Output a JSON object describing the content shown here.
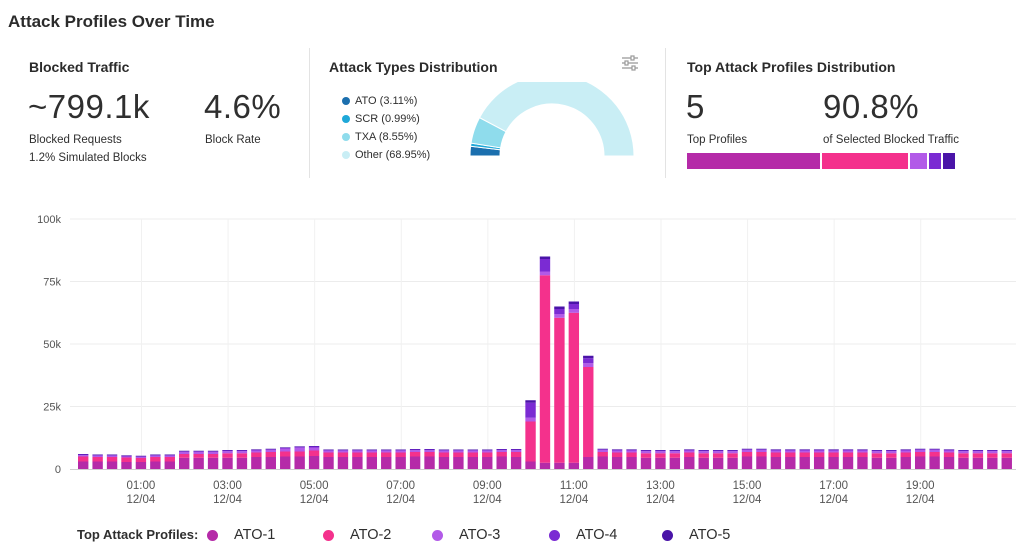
{
  "header": {
    "title": "Attack Profiles Over Time"
  },
  "blocked_traffic": {
    "title": "Blocked Traffic",
    "requests_value": "~799.1k",
    "requests_label": "Blocked Requests",
    "simulated_label": "1.2% Simulated Blocks",
    "rate_value": "4.6%",
    "rate_label": "Block Rate"
  },
  "attack_types": {
    "title": "Attack Types Distribution",
    "legend": [
      {
        "label": "ATO (3.11%)",
        "value": 3.11,
        "color": "#1b6fae"
      },
      {
        "label": "SCR (0.99%)",
        "value": 0.99,
        "color": "#1fa8d8"
      },
      {
        "label": "TXA (8.55%)",
        "value": 8.55,
        "color": "#8fdcec"
      },
      {
        "label": "Other (68.95%)",
        "value": 68.95,
        "color": "#c9eef5"
      }
    ],
    "settings_icon": "sliders-icon"
  },
  "top_profiles": {
    "title": "Top Attack Profiles Distribution",
    "count_value": "5",
    "count_label": "Top Profiles",
    "share_value": "90.8%",
    "share_label": "of Selected Blocked Traffic",
    "segments": [
      {
        "name": "ATO-1",
        "share": 0.49,
        "color": "#b52aa8"
      },
      {
        "name": "ATO-2",
        "share": 0.32,
        "color": "#f4318c"
      },
      {
        "name": "ATO-3",
        "share": 0.07,
        "color": "#b25ae8"
      },
      {
        "name": "ATO-4",
        "share": 0.05,
        "color": "#7b2bd3"
      },
      {
        "name": "ATO-5",
        "share": 0.05,
        "color": "#4a14a8"
      }
    ]
  },
  "chart_data": {
    "type": "bar",
    "stacked": true,
    "ylim": [
      0,
      100000
    ],
    "yticks": [
      {
        "value": 0,
        "label": "0"
      },
      {
        "value": 25000,
        "label": "25k"
      },
      {
        "value": 50000,
        "label": "50k"
      },
      {
        "value": 75000,
        "label": "75k"
      },
      {
        "value": 100000,
        "label": "100k"
      }
    ],
    "xticks": [
      {
        "time": "01:00",
        "date": "12/04",
        "index": 4
      },
      {
        "time": "03:00",
        "date": "12/04",
        "index": 10
      },
      {
        "time": "05:00",
        "date": "12/04",
        "index": 16
      },
      {
        "time": "07:00",
        "date": "12/04",
        "index": 22
      },
      {
        "time": "09:00",
        "date": "12/04",
        "index": 28
      },
      {
        "time": "11:00",
        "date": "12/04",
        "index": 34
      },
      {
        "time": "13:00",
        "date": "12/04",
        "index": 40
      },
      {
        "time": "15:00",
        "date": "12/04",
        "index": 46
      },
      {
        "time": "17:00",
        "date": "12/04",
        "index": 52
      },
      {
        "time": "19:00",
        "date": "12/04",
        "index": 58
      }
    ],
    "grid": true,
    "legend_title": "Top Attack Profiles:",
    "series": [
      {
        "name": "ATO-1",
        "color": "#b52aa8",
        "values": [
          3000,
          3000,
          3000,
          2800,
          2800,
          3000,
          3000,
          4500,
          4500,
          4500,
          4500,
          4500,
          4800,
          4800,
          5000,
          5000,
          5200,
          4800,
          4800,
          4800,
          4800,
          4800,
          4800,
          5000,
          5000,
          4800,
          4800,
          4800,
          4800,
          5000,
          4800,
          3000,
          2500,
          2500,
          2500,
          4800,
          5000,
          4800,
          4800,
          4500,
          4500,
          4500,
          4800,
          4500,
          4500,
          4500,
          5000,
          5000,
          4800,
          4800,
          4800,
          4800,
          4800,
          4800,
          4800,
          4500,
          4500,
          4800,
          5000,
          5000,
          4800,
          4500,
          4500,
          4500,
          4500
        ]
      },
      {
        "name": "ATO-2",
        "color": "#f4318c",
        "values": [
          2000,
          1800,
          1800,
          1800,
          1600,
          1800,
          1800,
          1500,
          1500,
          1500,
          1800,
          1800,
          1800,
          2000,
          2000,
          2000,
          2200,
          1800,
          1800,
          1800,
          1800,
          1800,
          1800,
          1800,
          1800,
          1800,
          1800,
          1800,
          1800,
          1800,
          2000,
          16000,
          75000,
          58000,
          60000,
          36000,
          1800,
          1800,
          1800,
          1800,
          1800,
          1800,
          1800,
          1800,
          1800,
          1800,
          1800,
          1800,
          1800,
          1800,
          1800,
          1800,
          1800,
          1800,
          1800,
          1800,
          1800,
          1800,
          1800,
          1800,
          1800,
          1800,
          1800,
          1800,
          1800
        ]
      },
      {
        "name": "ATO-3",
        "color": "#b25ae8",
        "values": [
          500,
          500,
          500,
          400,
          400,
          500,
          500,
          800,
          800,
          800,
          800,
          800,
          800,
          800,
          1200,
          1500,
          1200,
          700,
          700,
          700,
          700,
          700,
          700,
          700,
          700,
          700,
          700,
          700,
          700,
          700,
          700,
          1500,
          1500,
          1500,
          1500,
          1500,
          800,
          800,
          800,
          800,
          800,
          800,
          800,
          800,
          800,
          800,
          800,
          800,
          800,
          800,
          800,
          800,
          800,
          800,
          800,
          800,
          800,
          800,
          800,
          800,
          800,
          800,
          800,
          800,
          800
        ]
      },
      {
        "name": "ATO-4",
        "color": "#7b2bd3",
        "values": [
          300,
          300,
          300,
          300,
          300,
          300,
          300,
          300,
          300,
          300,
          300,
          300,
          300,
          300,
          300,
          400,
          400,
          300,
          300,
          300,
          300,
          300,
          300,
          300,
          300,
          300,
          300,
          300,
          300,
          300,
          300,
          6000,
          5000,
          2000,
          2000,
          2000,
          300,
          300,
          300,
          300,
          300,
          300,
          300,
          300,
          300,
          300,
          300,
          300,
          300,
          300,
          300,
          300,
          300,
          300,
          300,
          300,
          300,
          300,
          300,
          300,
          300,
          300,
          300,
          300,
          300
        ]
      },
      {
        "name": "ATO-5",
        "color": "#4a14a8",
        "values": [
          200,
          200,
          200,
          200,
          200,
          200,
          200,
          200,
          200,
          200,
          200,
          200,
          200,
          200,
          200,
          200,
          200,
          200,
          200,
          200,
          200,
          200,
          200,
          200,
          200,
          200,
          200,
          200,
          200,
          200,
          200,
          1000,
          1000,
          1000,
          1000,
          1000,
          200,
          200,
          200,
          200,
          200,
          200,
          200,
          200,
          200,
          200,
          200,
          200,
          200,
          200,
          200,
          200,
          200,
          200,
          200,
          200,
          200,
          200,
          200,
          200,
          200,
          200,
          200,
          200,
          200
        ]
      }
    ]
  }
}
